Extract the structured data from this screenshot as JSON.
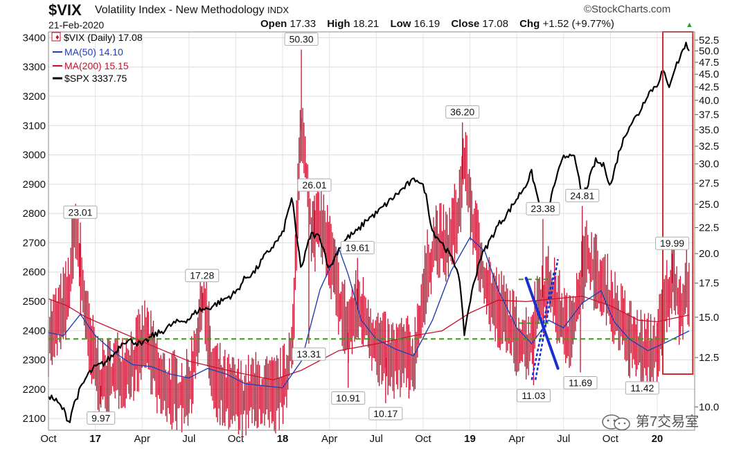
{
  "header": {
    "symbol": "$VIX",
    "name": "Volatility Index - New Methodology",
    "exchange": "INDX",
    "date": "21-Feb-2020",
    "brand": "©StockCharts.com",
    "open_label": "Open",
    "open": "17.33",
    "high_label": "High",
    "high": "18.21",
    "low_label": "Low",
    "low": "16.19",
    "close_label": "Close",
    "close": "17.08",
    "chg_label": "Chg",
    "chg": "+1.52 (+9.77%)"
  },
  "legend": {
    "vix": "$VIX (Daily) 17.08",
    "ma50": "MA(50) 14.10",
    "ma200": "MA(200) 15.15",
    "spx": "$SPX 3337.75"
  },
  "watermark": "第7交易室",
  "colors": {
    "vix": "#c8102e",
    "ma50": "#1f3fb5",
    "ma200": "#c8102e",
    "spx": "#000000",
    "dashed_green": "#3a9a1a",
    "highlight_box": "#d62828",
    "trend_blue": "#1a2fd0"
  },
  "chart_data": {
    "type": "line",
    "title": "$VIX Volatility Index - New Methodology",
    "x_range": [
      2016.75,
      2020.2
    ],
    "x_ticks": [
      {
        "label": "Oct",
        "t": 2016.75
      },
      {
        "label": "17",
        "t": 2017.0
      },
      {
        "label": "Apr",
        "t": 2017.25
      },
      {
        "label": "Jul",
        "t": 2017.5
      },
      {
        "label": "Oct",
        "t": 2017.75
      },
      {
        "label": "18",
        "t": 2018.0
      },
      {
        "label": "Apr",
        "t": 2018.25
      },
      {
        "label": "Jul",
        "t": 2018.5
      },
      {
        "label": "Oct",
        "t": 2018.75
      },
      {
        "label": "19",
        "t": 2019.0
      },
      {
        "label": "Apr",
        "t": 2019.25
      },
      {
        "label": "Jul",
        "t": 2019.5
      },
      {
        "label": "Oct",
        "t": 2019.75
      },
      {
        "label": "20",
        "t": 2020.0
      }
    ],
    "left_axis": {
      "label": "$SPX",
      "range": [
        2060,
        3420
      ],
      "ticks": [
        2100,
        2200,
        2300,
        2400,
        2500,
        2600,
        2700,
        2800,
        2900,
        3000,
        3100,
        3200,
        3300,
        3400
      ]
    },
    "right_axis": {
      "label": "$VIX",
      "scale": "log",
      "range": [
        9.0,
        54.5
      ],
      "ticks": [
        "10.0",
        "12.5",
        "15.0",
        "17.5",
        "20.0",
        "22.5",
        "25.0",
        "27.5",
        "30.0",
        "32.5",
        "35.0",
        "37.5",
        "40.0",
        "42.5",
        "45.0",
        "47.5",
        "50.0",
        "52.5"
      ]
    },
    "annotations": [
      {
        "label": "23.01",
        "t": 2016.92,
        "v": 23.01
      },
      {
        "label": "9.97",
        "t": 2017.03,
        "v": 9.97
      },
      {
        "label": "17.28",
        "t": 2017.57,
        "v": 17.28
      },
      {
        "label": "50.30",
        "t": 2018.1,
        "v": 50.3
      },
      {
        "label": "26.01",
        "t": 2018.17,
        "v": 26.01
      },
      {
        "label": "13.31",
        "t": 2018.14,
        "v": 13.31
      },
      {
        "label": "19.61",
        "t": 2018.4,
        "v": 19.61
      },
      {
        "label": "10.91",
        "t": 2018.35,
        "v": 10.91
      },
      {
        "label": "10.17",
        "t": 2018.55,
        "v": 10.17
      },
      {
        "label": "36.20",
        "t": 2018.96,
        "v": 36.2
      },
      {
        "label": "11.03",
        "t": 2019.34,
        "v": 11.03
      },
      {
        "label": "23.38",
        "t": 2019.39,
        "v": 23.38
      },
      {
        "label": "24.81",
        "t": 2019.6,
        "v": 24.81
      },
      {
        "label": "11.69",
        "t": 2019.59,
        "v": 11.69
      },
      {
        "label": "11.42",
        "t": 2019.92,
        "v": 11.42
      },
      {
        "label": "19.99",
        "t": 2020.08,
        "v": 19.99
      }
    ],
    "series": [
      {
        "name": "$SPX",
        "axis": "left",
        "style": "line",
        "points": [
          [
            2016.75,
            2180
          ],
          [
            2016.79,
            2160
          ],
          [
            2016.83,
            2130
          ],
          [
            2016.86,
            2085
          ],
          [
            2016.88,
            2140
          ],
          [
            2016.92,
            2200
          ],
          [
            2016.96,
            2250
          ],
          [
            2017.0,
            2275
          ],
          [
            2017.05,
            2290
          ],
          [
            2017.1,
            2320
          ],
          [
            2017.15,
            2365
          ],
          [
            2017.2,
            2365
          ],
          [
            2017.25,
            2350
          ],
          [
            2017.3,
            2380
          ],
          [
            2017.35,
            2395
          ],
          [
            2017.42,
            2425
          ],
          [
            2017.5,
            2440
          ],
          [
            2017.55,
            2470
          ],
          [
            2017.6,
            2475
          ],
          [
            2017.67,
            2500
          ],
          [
            2017.75,
            2530
          ],
          [
            2017.8,
            2580
          ],
          [
            2017.85,
            2600
          ],
          [
            2017.9,
            2650
          ],
          [
            2017.95,
            2690
          ],
          [
            2018.0,
            2730
          ],
          [
            2018.05,
            2860
          ],
          [
            2018.07,
            2740
          ],
          [
            2018.1,
            2610
          ],
          [
            2018.15,
            2730
          ],
          [
            2018.2,
            2720
          ],
          [
            2018.25,
            2610
          ],
          [
            2018.3,
            2680
          ],
          [
            2018.35,
            2720
          ],
          [
            2018.4,
            2740
          ],
          [
            2018.45,
            2780
          ],
          [
            2018.5,
            2800
          ],
          [
            2018.55,
            2830
          ],
          [
            2018.6,
            2860
          ],
          [
            2018.67,
            2900
          ],
          [
            2018.72,
            2920
          ],
          [
            2018.76,
            2880
          ],
          [
            2018.8,
            2740
          ],
          [
            2018.85,
            2700
          ],
          [
            2018.9,
            2650
          ],
          [
            2018.94,
            2600
          ],
          [
            2018.97,
            2390
          ],
          [
            2019.0,
            2500
          ],
          [
            2019.05,
            2640
          ],
          [
            2019.1,
            2700
          ],
          [
            2019.15,
            2760
          ],
          [
            2019.2,
            2800
          ],
          [
            2019.25,
            2850
          ],
          [
            2019.3,
            2900
          ],
          [
            2019.33,
            2940
          ],
          [
            2019.37,
            2830
          ],
          [
            2019.42,
            2820
          ],
          [
            2019.46,
            2920
          ],
          [
            2019.5,
            2990
          ],
          [
            2019.55,
            3010
          ],
          [
            2019.6,
            2860
          ],
          [
            2019.63,
            2900
          ],
          [
            2019.67,
            2980
          ],
          [
            2019.72,
            2960
          ],
          [
            2019.75,
            2890
          ],
          [
            2019.8,
            3020
          ],
          [
            2019.85,
            3100
          ],
          [
            2019.9,
            3140
          ],
          [
            2019.95,
            3210
          ],
          [
            2020.0,
            3240
          ],
          [
            2020.03,
            3290
          ],
          [
            2020.06,
            3230
          ],
          [
            2020.09,
            3290
          ],
          [
            2020.12,
            3330
          ],
          [
            2020.15,
            3380
          ],
          [
            2020.17,
            3360
          ]
        ]
      },
      {
        "name": "$VIX MA(200)",
        "axis": "right",
        "style": "line",
        "points": [
          [
            2016.75,
            16.3
          ],
          [
            2016.85,
            15.8
          ],
          [
            2016.95,
            15.0
          ],
          [
            2017.1,
            14.2
          ],
          [
            2017.3,
            13.2
          ],
          [
            2017.5,
            12.3
          ],
          [
            2017.75,
            11.7
          ],
          [
            2017.95,
            11.3
          ],
          [
            2018.1,
            11.8
          ],
          [
            2018.3,
            12.9
          ],
          [
            2018.5,
            13.3
          ],
          [
            2018.7,
            13.8
          ],
          [
            2018.85,
            14.1
          ],
          [
            2019.0,
            15.3
          ],
          [
            2019.15,
            16.2
          ],
          [
            2019.3,
            16.1
          ],
          [
            2019.45,
            16.3
          ],
          [
            2019.6,
            16.5
          ],
          [
            2019.75,
            15.8
          ],
          [
            2019.9,
            14.8
          ],
          [
            2020.0,
            14.7
          ],
          [
            2020.17,
            15.15
          ]
        ]
      },
      {
        "name": "$VIX MA(50)",
        "axis": "right",
        "style": "line",
        "points": [
          [
            2016.75,
            14.0
          ],
          [
            2016.83,
            13.8
          ],
          [
            2016.92,
            15.2
          ],
          [
            2017.0,
            13.8
          ],
          [
            2017.1,
            12.8
          ],
          [
            2017.2,
            12.1
          ],
          [
            2017.3,
            12.0
          ],
          [
            2017.4,
            11.6
          ],
          [
            2017.5,
            11.4
          ],
          [
            2017.6,
            11.9
          ],
          [
            2017.7,
            11.6
          ],
          [
            2017.8,
            11.1
          ],
          [
            2017.9,
            11.0
          ],
          [
            2018.0,
            10.9
          ],
          [
            2018.1,
            12.3
          ],
          [
            2018.2,
            17.0
          ],
          [
            2018.3,
            20.5
          ],
          [
            2018.35,
            18.2
          ],
          [
            2018.42,
            14.8
          ],
          [
            2018.5,
            13.6
          ],
          [
            2018.6,
            13.0
          ],
          [
            2018.7,
            12.6
          ],
          [
            2018.8,
            14.8
          ],
          [
            2018.9,
            18.5
          ],
          [
            2019.0,
            21.5
          ],
          [
            2019.08,
            20.2
          ],
          [
            2019.15,
            17.0
          ],
          [
            2019.25,
            14.3
          ],
          [
            2019.33,
            13.3
          ],
          [
            2019.42,
            14.8
          ],
          [
            2019.5,
            14.3
          ],
          [
            2019.6,
            16.0
          ],
          [
            2019.7,
            16.9
          ],
          [
            2019.77,
            14.7
          ],
          [
            2019.85,
            13.6
          ],
          [
            2019.95,
            12.9
          ],
          [
            2020.05,
            13.4
          ],
          [
            2020.17,
            14.1
          ]
        ]
      },
      {
        "name": "$VIX (Daily)",
        "axis": "right",
        "style": "bars",
        "anchors": [
          [
            2016.75,
            13.5
          ],
          [
            2016.8,
            14.5
          ],
          [
            2016.86,
            16.5
          ],
          [
            2016.89,
            22.5
          ],
          [
            2016.92,
            18.0
          ],
          [
            2016.97,
            13.0
          ],
          [
            2017.03,
            11.0
          ],
          [
            2017.1,
            11.5
          ],
          [
            2017.2,
            12.0
          ],
          [
            2017.27,
            13.5
          ],
          [
            2017.35,
            10.8
          ],
          [
            2017.45,
            10.5
          ],
          [
            2017.5,
            10.6
          ],
          [
            2017.55,
            13.8
          ],
          [
            2017.58,
            16.5
          ],
          [
            2017.62,
            11.5
          ],
          [
            2017.7,
            10.5
          ],
          [
            2017.78,
            10.2
          ],
          [
            2017.85,
            10.5
          ],
          [
            2017.95,
            10.3
          ],
          [
            2018.02,
            11.0
          ],
          [
            2018.06,
            14.5
          ],
          [
            2018.1,
            35.0
          ],
          [
            2018.12,
            30.0
          ],
          [
            2018.16,
            21.0
          ],
          [
            2018.2,
            23.0
          ],
          [
            2018.25,
            20.0
          ],
          [
            2018.3,
            16.0
          ],
          [
            2018.35,
            14.0
          ],
          [
            2018.4,
            15.5
          ],
          [
            2018.45,
            14.5
          ],
          [
            2018.5,
            13.0
          ],
          [
            2018.58,
            12.2
          ],
          [
            2018.65,
            12.5
          ],
          [
            2018.7,
            12.0
          ],
          [
            2018.77,
            18.0
          ],
          [
            2018.82,
            21.0
          ],
          [
            2018.88,
            20.0
          ],
          [
            2018.94,
            24.0
          ],
          [
            2018.97,
            30.0
          ],
          [
            2019.02,
            22.0
          ],
          [
            2019.07,
            18.0
          ],
          [
            2019.12,
            16.0
          ],
          [
            2019.18,
            15.0
          ],
          [
            2019.25,
            13.5
          ],
          [
            2019.32,
            13.0
          ],
          [
            2019.37,
            16.0
          ],
          [
            2019.42,
            17.0
          ],
          [
            2019.47,
            15.5
          ],
          [
            2019.53,
            13.5
          ],
          [
            2019.6,
            18.0
          ],
          [
            2019.63,
            19.5
          ],
          [
            2019.7,
            17.0
          ],
          [
            2019.75,
            16.0
          ],
          [
            2019.8,
            14.5
          ],
          [
            2019.88,
            13.0
          ],
          [
            2019.95,
            12.5
          ],
          [
            2020.0,
            13.0
          ],
          [
            2020.05,
            16.0
          ],
          [
            2020.09,
            18.0
          ],
          [
            2020.12,
            15.5
          ],
          [
            2020.17,
            17.08
          ]
        ]
      }
    ],
    "overlays": {
      "horizontal_dashed": [
        {
          "level": 13.6
        }
      ],
      "short_dashed": [
        {
          "t_from": 2019.26,
          "t_to": 2019.42,
          "level": 17.8
        },
        {
          "t_from": 2019.26,
          "t_to": 2019.42,
          "level": 14.6
        }
      ],
      "trendline_solid": {
        "from": [
          2019.3,
          17.9
        ],
        "to": [
          2019.47,
          11.9
        ]
      },
      "trendline_dotted": [
        {
          "from": [
            2019.33,
            11.3
          ],
          "to": [
            2019.45,
            18.5
          ]
        },
        {
          "from": [
            2019.35,
            11.3
          ],
          "to": [
            2019.47,
            19.5
          ]
        }
      ],
      "highlight_box": {
        "t_from": 2020.03,
        "t_to": 2020.19,
        "v_from": 11.6,
        "v_to": 54.5
      }
    }
  }
}
